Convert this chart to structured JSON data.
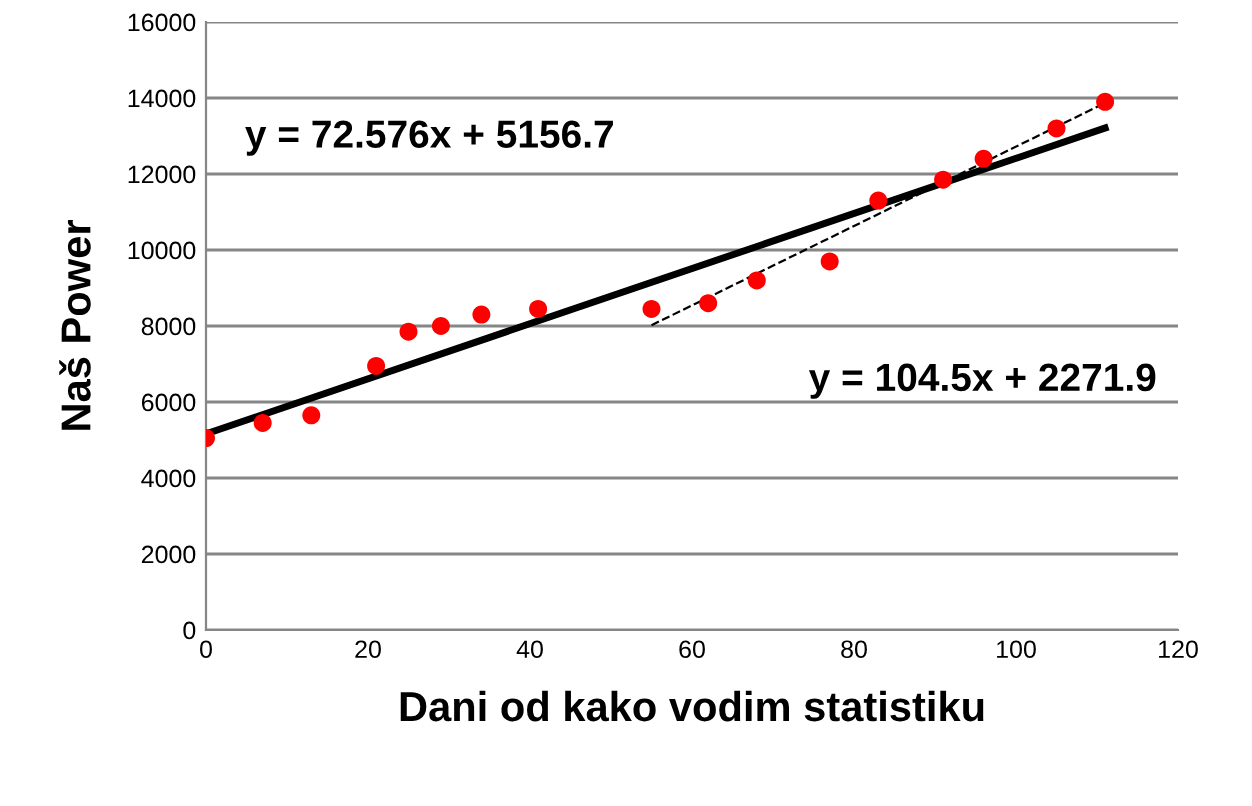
{
  "chart_data": {
    "type": "scatter",
    "xlabel": "Dani od kako vodim statistiku",
    "ylabel": "Naš Power",
    "xlim": [
      0,
      120
    ],
    "xticks": [
      0,
      20,
      40,
      60,
      80,
      100,
      120
    ],
    "ylim": [
      0,
      16000
    ],
    "yticks": [
      0,
      2000,
      4000,
      6000,
      8000,
      10000,
      12000,
      14000,
      16000
    ],
    "grid": "y",
    "marker": "circle",
    "series": [
      {
        "color": "#ff0000",
        "x": [
          0,
          7,
          13,
          21,
          25,
          29,
          34,
          41,
          55,
          62,
          68,
          77,
          83,
          91,
          96,
          105,
          111
        ],
        "values": [
          5050,
          5450,
          5650,
          6950,
          7850,
          8000,
          8300,
          8450,
          8450,
          8600,
          9200,
          9700,
          11300,
          11850,
          12400,
          13200,
          13900
        ]
      },
      {
        "type": "line",
        "color": "#000000",
        "line_style": "solid",
        "marker": "none",
        "x": [
          0,
          111
        ],
        "values": [
          5160,
          13210
        ]
      },
      {
        "type": "line",
        "color": "#000000",
        "line_style": "dashed",
        "marker": "none",
        "x": [
          55,
          111
        ],
        "values": [
          8020,
          13870
        ]
      }
    ],
    "annotations": [
      "y = 72.576x + 5156.7",
      "y = 104.5x + 2271.9"
    ]
  }
}
